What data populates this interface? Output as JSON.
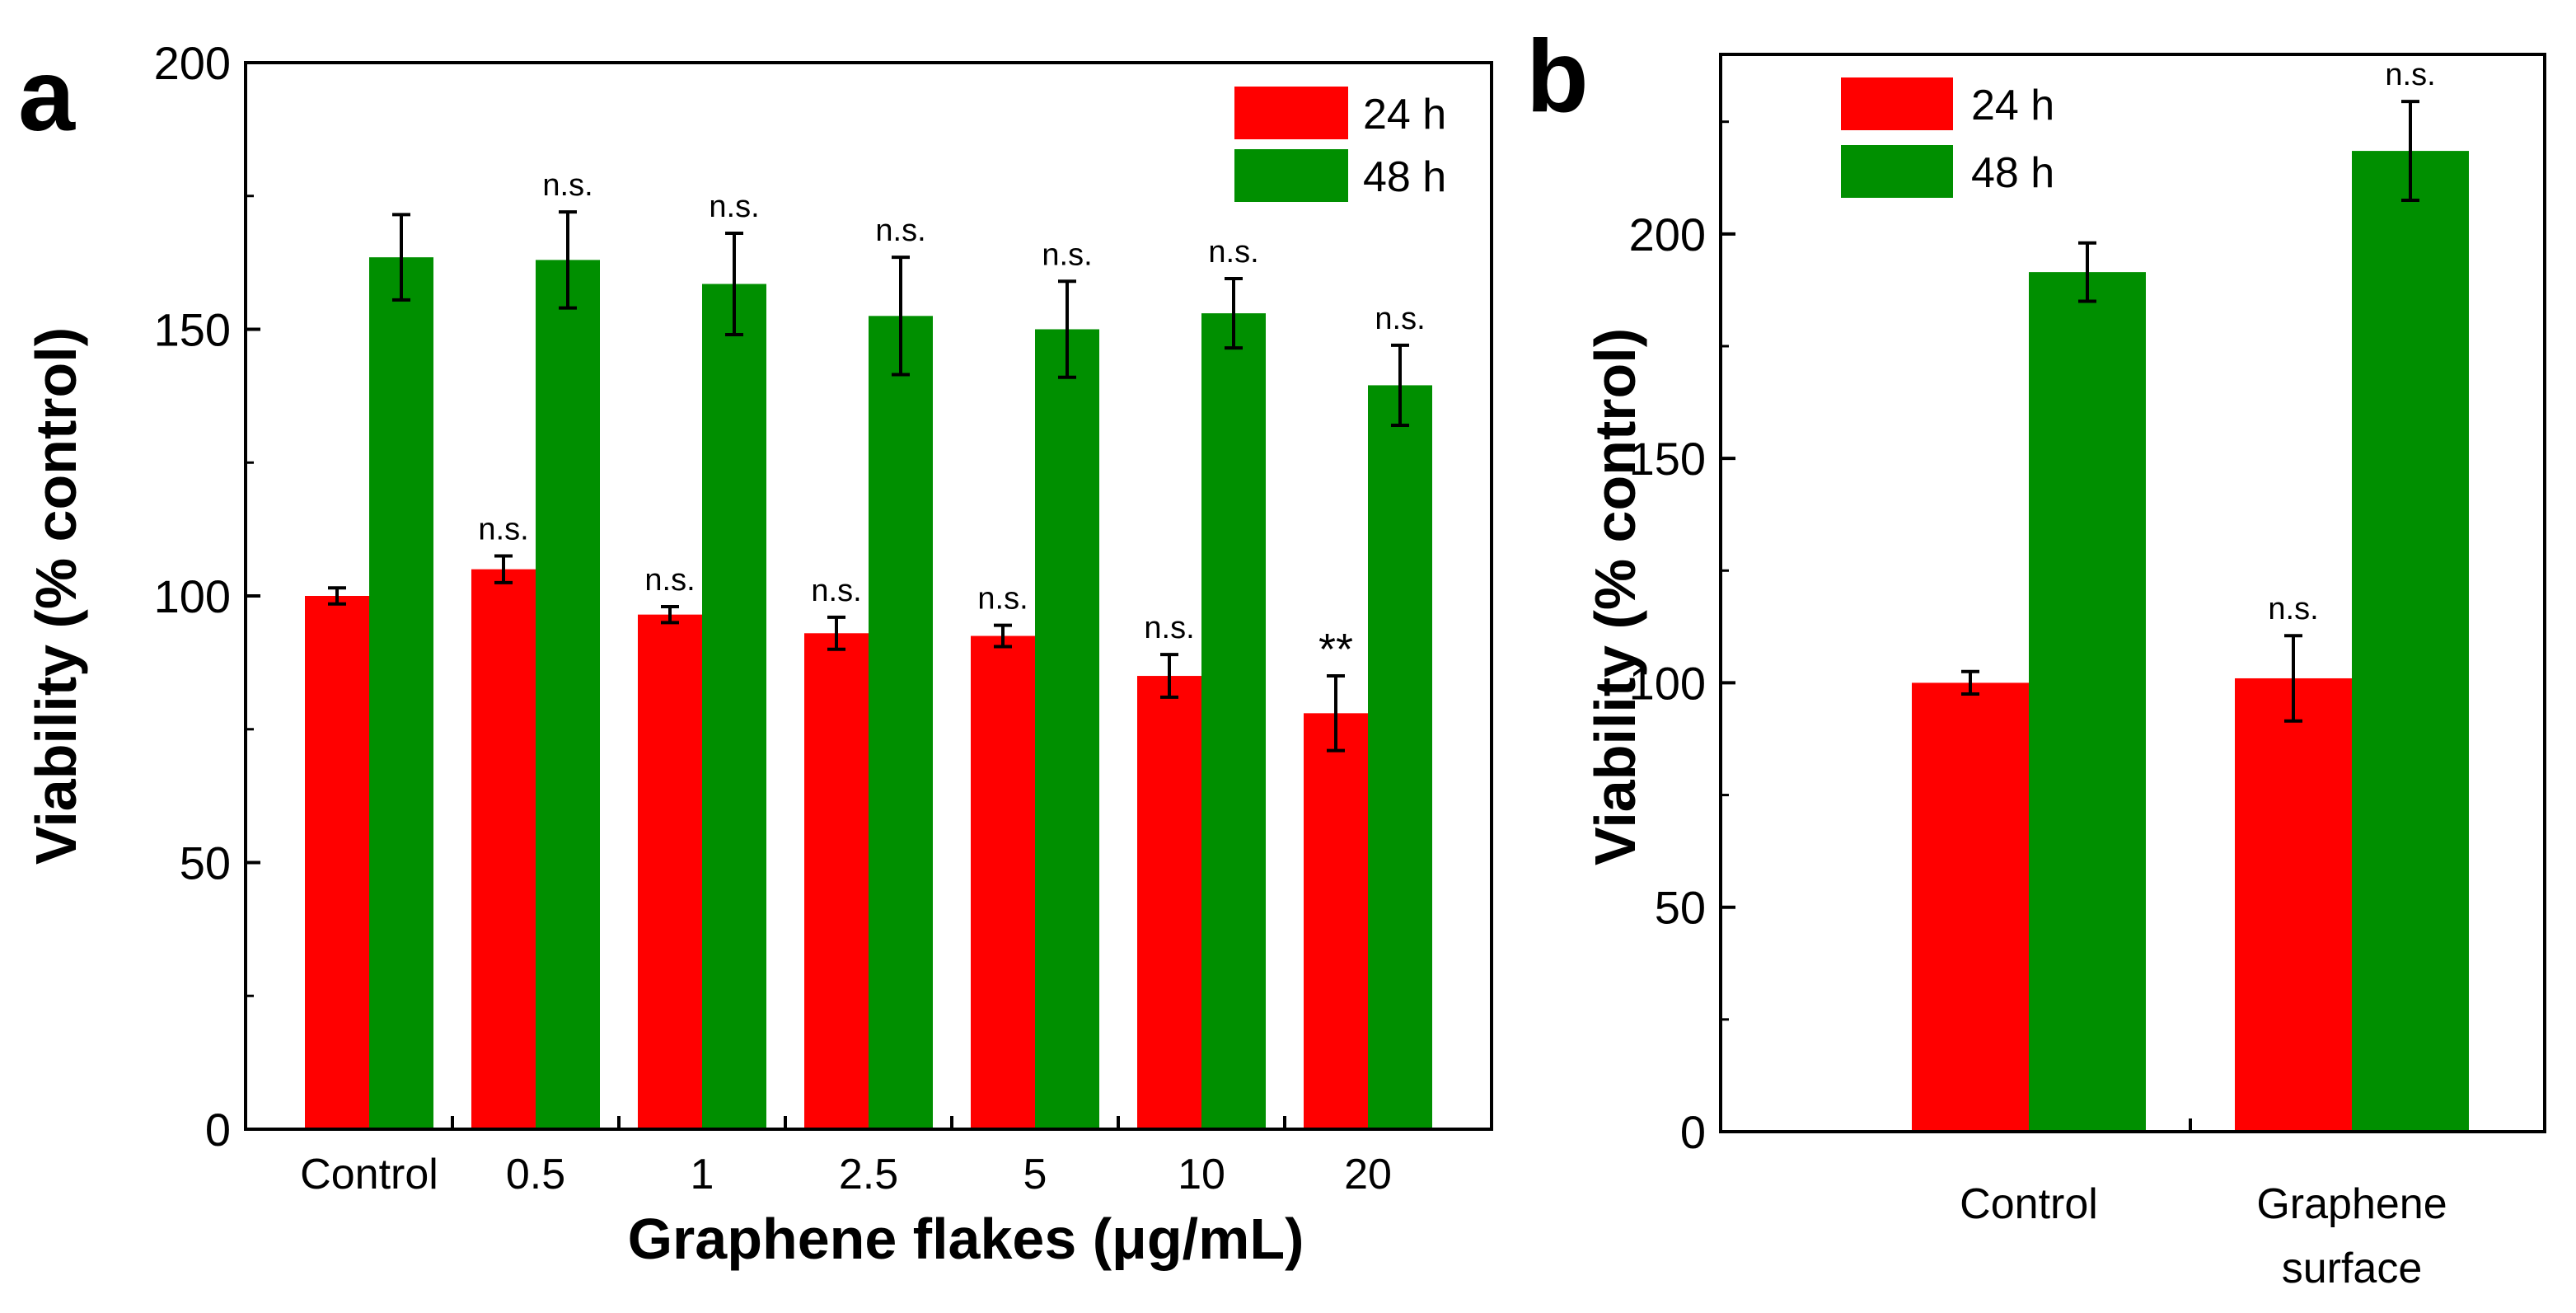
{
  "chart_data": [
    {
      "panel": "a",
      "type": "bar",
      "title": "",
      "xlabel": "Graphene flakes (μg/mL)",
      "ylabel": "Viability (% control)",
      "ylim": [
        0,
        200
      ],
      "yticks": [
        0,
        50,
        100,
        150,
        200
      ],
      "categories": [
        "Control",
        "0.5",
        "1",
        "2.5",
        "5",
        "10",
        "20"
      ],
      "legend": {
        "placement": "top-right"
      },
      "series": [
        {
          "name": "24 h",
          "color": "#ff0000",
          "values": [
            100,
            105,
            96.5,
            93,
            92.5,
            85,
            78
          ],
          "errors": [
            1.5,
            2.5,
            1.5,
            3,
            2,
            4,
            7
          ],
          "annotations": [
            "",
            "n.s.",
            "n.s.",
            "n.s.",
            "n.s.",
            "n.s.",
            "**"
          ]
        },
        {
          "name": "48 h",
          "color": "#008f00",
          "values": [
            163.5,
            163,
            158.5,
            152.5,
            150,
            153,
            139.5
          ],
          "errors": [
            8,
            9,
            9.5,
            11,
            9,
            6.5,
            7.5
          ],
          "annotations": [
            "",
            "n.s.",
            "n.s.",
            "n.s.",
            "n.s.",
            "n.s.",
            "n.s."
          ]
        }
      ]
    },
    {
      "panel": "b",
      "type": "bar",
      "title": "",
      "xlabel": "",
      "ylabel": "Viability (% control)",
      "ylim": [
        0,
        240
      ],
      "yticks": [
        0,
        50,
        100,
        150,
        200
      ],
      "categories": [
        [
          "Control"
        ],
        [
          "Graphene",
          "surface"
        ]
      ],
      "legend": {
        "placement": "top-left"
      },
      "series": [
        {
          "name": "24 h",
          "color": "#ff0000",
          "values": [
            100,
            101
          ],
          "errors": [
            2.5,
            9.5
          ],
          "annotations": [
            "",
            "n.s."
          ]
        },
        {
          "name": "48 h",
          "color": "#008f00",
          "values": [
            191.5,
            218.5
          ],
          "errors": [
            6.5,
            11
          ],
          "annotations": [
            "",
            "n.s."
          ]
        }
      ]
    }
  ]
}
